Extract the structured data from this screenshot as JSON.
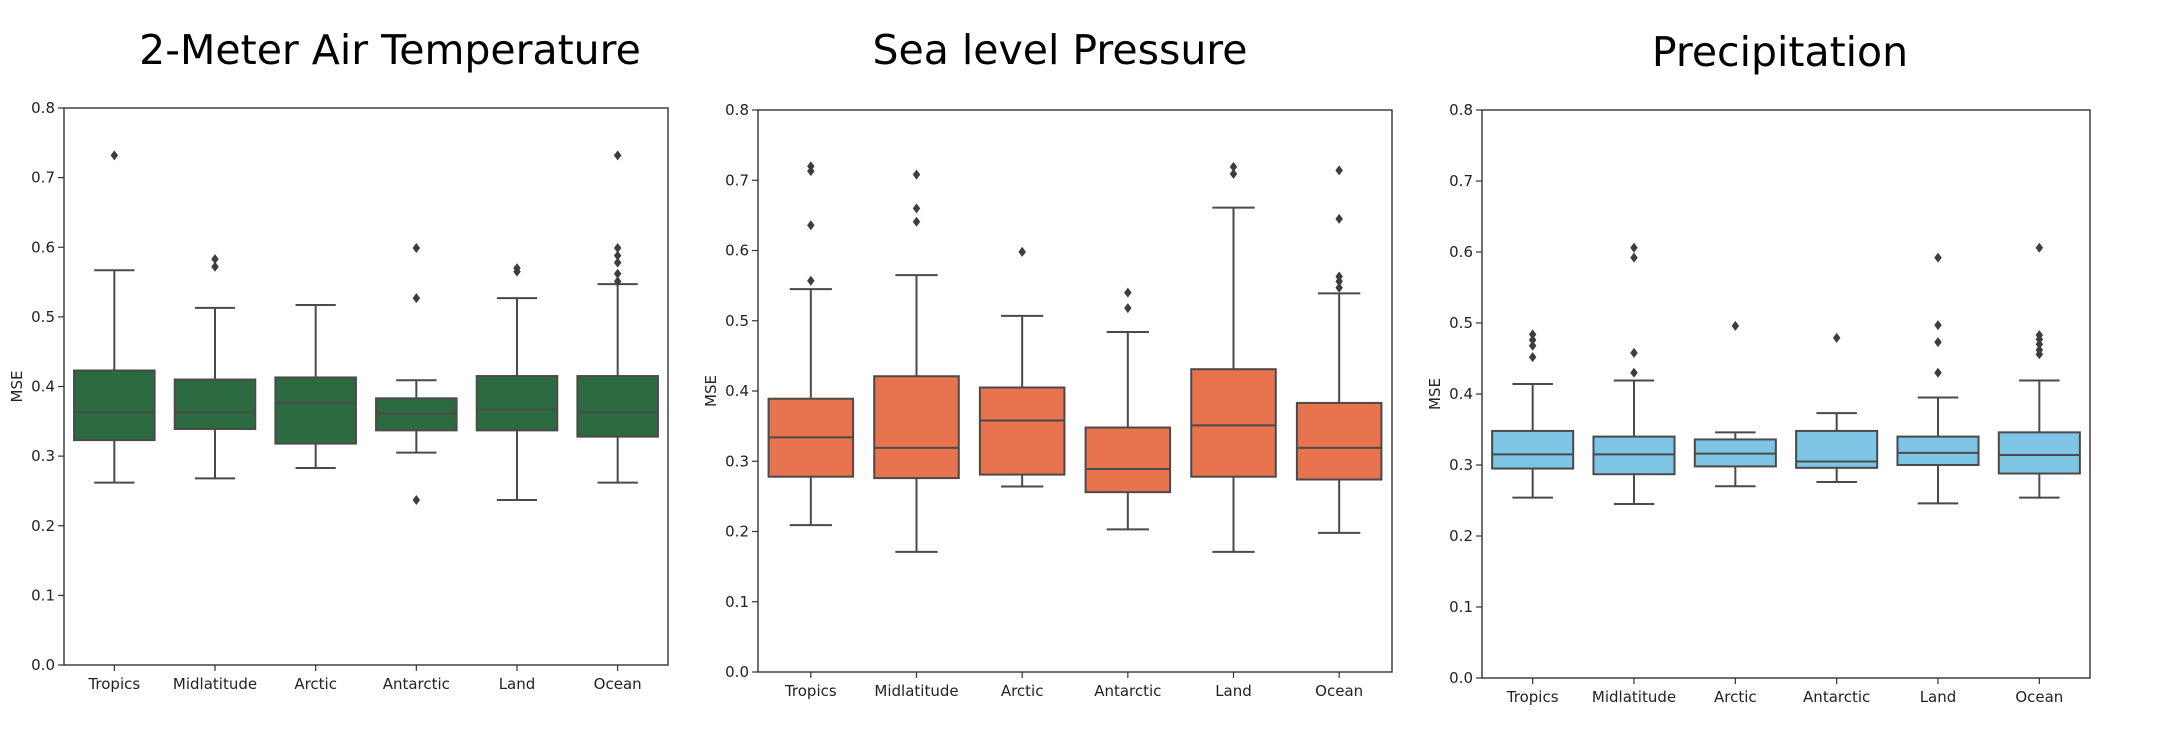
{
  "chart_data": [
    {
      "type": "box",
      "title": "2-Meter Air Temperature",
      "ylabel": "MSE",
      "ylim": [
        0.0,
        0.8
      ],
      "yticks": [
        "0.0",
        "0.1",
        "0.2",
        "0.3",
        "0.4",
        "0.5",
        "0.6",
        "0.7",
        "0.8"
      ],
      "categories": [
        "Tropics",
        "Midlatitude",
        "Arctic",
        "Antarctic",
        "Land",
        "Ocean"
      ],
      "color": "#2b6b3f",
      "boxes": [
        {
          "whislo": 0.262,
          "q1": 0.323,
          "med": 0.363,
          "q3": 0.423,
          "whishi": 0.567,
          "fliers": [
            0.732
          ]
        },
        {
          "whislo": 0.268,
          "q1": 0.339,
          "med": 0.363,
          "q3": 0.41,
          "whishi": 0.513,
          "fliers": [
            0.572,
            0.583
          ]
        },
        {
          "whislo": 0.283,
          "q1": 0.318,
          "med": 0.377,
          "q3": 0.413,
          "whishi": 0.517,
          "fliers": []
        },
        {
          "whislo": 0.305,
          "q1": 0.337,
          "med": 0.361,
          "q3": 0.383,
          "whishi": 0.409,
          "fliers": [
            0.237,
            0.527,
            0.599
          ]
        },
        {
          "whislo": 0.237,
          "q1": 0.337,
          "med": 0.367,
          "q3": 0.415,
          "whishi": 0.527,
          "fliers": [
            0.565,
            0.57
          ]
        },
        {
          "whislo": 0.262,
          "q1": 0.328,
          "med": 0.363,
          "q3": 0.415,
          "whishi": 0.547,
          "fliers": [
            0.551,
            0.562,
            0.578,
            0.588,
            0.599,
            0.732
          ]
        }
      ]
    },
    {
      "type": "box",
      "title": "Sea level Pressure",
      "ylabel": "MSE",
      "ylim": [
        0.0,
        0.8
      ],
      "yticks": [
        "0.0",
        "0.1",
        "0.2",
        "0.3",
        "0.4",
        "0.5",
        "0.6",
        "0.7",
        "0.8"
      ],
      "categories": [
        "Tropics",
        "Midlatitude",
        "Arctic",
        "Antarctic",
        "Land",
        "Ocean"
      ],
      "color": "#e8734f",
      "boxes": [
        {
          "whislo": 0.209,
          "q1": 0.278,
          "med": 0.334,
          "q3": 0.389,
          "whishi": 0.545,
          "fliers": [
            0.557,
            0.636,
            0.713,
            0.72
          ]
        },
        {
          "whislo": 0.171,
          "q1": 0.276,
          "med": 0.319,
          "q3": 0.421,
          "whishi": 0.565,
          "fliers": [
            0.641,
            0.66,
            0.708
          ]
        },
        {
          "whislo": 0.264,
          "q1": 0.281,
          "med": 0.358,
          "q3": 0.405,
          "whishi": 0.507,
          "fliers": [
            0.598
          ]
        },
        {
          "whislo": 0.203,
          "q1": 0.256,
          "med": 0.289,
          "q3": 0.348,
          "whishi": 0.484,
          "fliers": [
            0.518,
            0.54
          ]
        },
        {
          "whislo": 0.171,
          "q1": 0.278,
          "med": 0.351,
          "q3": 0.431,
          "whishi": 0.661,
          "fliers": [
            0.709,
            0.719
          ]
        },
        {
          "whislo": 0.198,
          "q1": 0.274,
          "med": 0.319,
          "q3": 0.383,
          "whishi": 0.539,
          "fliers": [
            0.547,
            0.556,
            0.563,
            0.645,
            0.714
          ]
        }
      ]
    },
    {
      "type": "box",
      "title": "Precipitation",
      "ylabel": "MSE",
      "ylim": [
        0.0,
        0.8
      ],
      "yticks": [
        "0.0",
        "0.1",
        "0.2",
        "0.3",
        "0.4",
        "0.5",
        "0.6",
        "0.7",
        "0.8"
      ],
      "categories": [
        "Tropics",
        "Midlatitude",
        "Arctic",
        "Antarctic",
        "Land",
        "Ocean"
      ],
      "color": "#7ec4e4",
      "boxes": [
        {
          "whislo": 0.254,
          "q1": 0.295,
          "med": 0.315,
          "q3": 0.348,
          "whishi": 0.414,
          "fliers": [
            0.452,
            0.468,
            0.476,
            0.484
          ]
        },
        {
          "whislo": 0.245,
          "q1": 0.287,
          "med": 0.315,
          "q3": 0.34,
          "whishi": 0.419,
          "fliers": [
            0.43,
            0.458,
            0.592,
            0.606
          ]
        },
        {
          "whislo": 0.27,
          "q1": 0.298,
          "med": 0.316,
          "q3": 0.336,
          "whishi": 0.346,
          "fliers": [
            0.496
          ]
        },
        {
          "whislo": 0.276,
          "q1": 0.296,
          "med": 0.305,
          "q3": 0.348,
          "whishi": 0.373,
          "fliers": [
            0.479
          ]
        },
        {
          "whislo": 0.246,
          "q1": 0.3,
          "med": 0.317,
          "q3": 0.34,
          "whishi": 0.395,
          "fliers": [
            0.43,
            0.473,
            0.497,
            0.592
          ]
        },
        {
          "whislo": 0.254,
          "q1": 0.288,
          "med": 0.314,
          "q3": 0.346,
          "whishi": 0.419,
          "fliers": [
            0.456,
            0.462,
            0.47,
            0.477,
            0.483,
            0.606
          ]
        }
      ]
    }
  ]
}
